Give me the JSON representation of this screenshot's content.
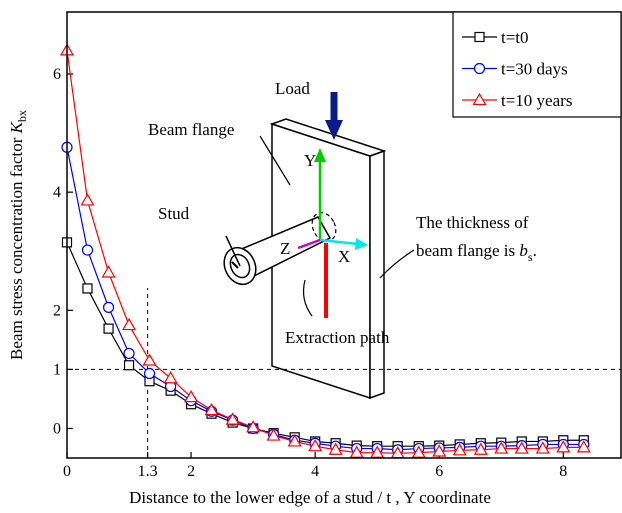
{
  "chart_data": {
    "type": "line",
    "x_label": "Distance to the lower edge of a stud / t , Y coordinate",
    "y_label": {
      "text": "Beam stress concentration factor ",
      "var": "K",
      "sub": "bx"
    },
    "x": [
      0,
      0.33,
      0.67,
      1,
      1.33,
      1.67,
      2,
      2.33,
      2.67,
      3,
      3.33,
      3.67,
      4,
      4.33,
      4.67,
      5,
      5.33,
      5.67,
      6,
      6.33,
      6.67,
      7,
      7.33,
      7.67,
      8,
      8.33
    ],
    "series": [
      {
        "name": "t=t0",
        "color": "#000000",
        "marker": "square",
        "values": [
          3.15,
          2.37,
          1.69,
          1.07,
          0.8,
          0.64,
          0.41,
          0.25,
          0.1,
          0,
          -0.08,
          -0.15,
          -0.22,
          -0.25,
          -0.29,
          -0.3,
          -0.3,
          -0.3,
          -0.29,
          -0.27,
          -0.25,
          -0.24,
          -0.22,
          -0.22,
          -0.2,
          -0.2
        ]
      },
      {
        "name": "t=30 days",
        "color": "#0000ff",
        "marker": "circle",
        "values": [
          4.76,
          3.02,
          2.05,
          1.27,
          0.93,
          0.71,
          0.47,
          0.29,
          0.14,
          0,
          -0.1,
          -0.2,
          -0.25,
          -0.3,
          -0.34,
          -0.34,
          -0.36,
          -0.34,
          -0.33,
          -0.32,
          -0.3,
          -0.3,
          -0.29,
          -0.27,
          -0.27,
          -0.27
        ]
      },
      {
        "name": "t=10 years",
        "color": "#ff0000",
        "marker": "triangle",
        "values": [
          6.4,
          3.86,
          2.64,
          1.75,
          1.15,
          0.85,
          0.53,
          0.31,
          0.15,
          0.02,
          -0.12,
          -0.22,
          -0.3,
          -0.36,
          -0.41,
          -0.41,
          -0.42,
          -0.41,
          -0.39,
          -0.37,
          -0.36,
          -0.34,
          -0.34,
          -0.34,
          -0.32,
          -0.32
        ]
      }
    ],
    "xlim": [
      0,
      8.93
    ],
    "ylim": [
      -0.5,
      7.05
    ],
    "xticks": [
      0,
      1.3,
      2,
      4,
      6,
      8
    ],
    "yticks": [
      0,
      1,
      2,
      4,
      6
    ],
    "hline": 1,
    "vline": 1.3,
    "legend": "upper right",
    "annotations": {
      "load": "Load",
      "flange": "Beam flange",
      "stud": "Stud",
      "axis_y": "Y",
      "axis_z": "Z",
      "axis_x": "X",
      "thickness_1": "The thickness of",
      "thickness_2": {
        "text": "beam flange is ",
        "var": "b",
        "sub": "s",
        "end": "."
      },
      "path": "Extraction path"
    }
  }
}
